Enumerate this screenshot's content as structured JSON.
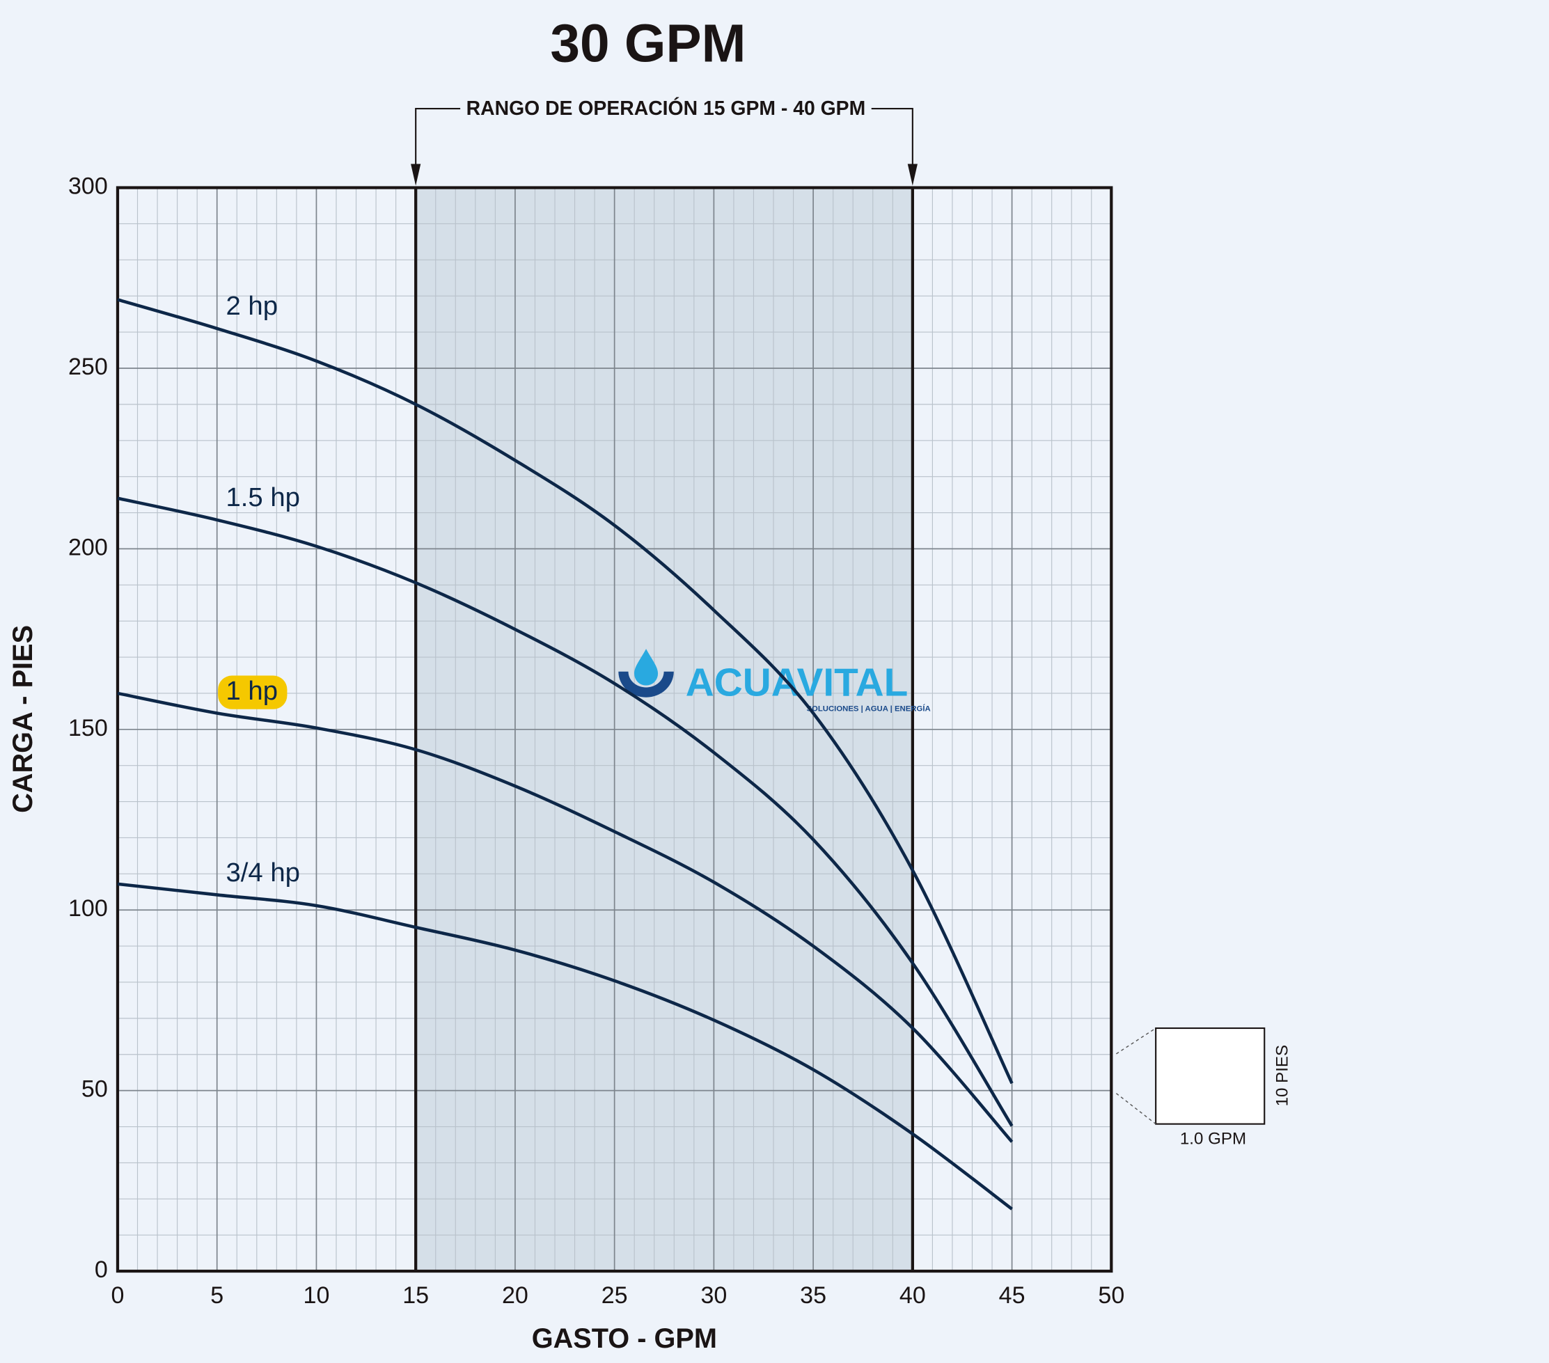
{
  "chart_data": {
    "type": "line",
    "title": "30 GPM",
    "range_annotation": "RANGO DE OPERACIÓN 15 GPM - 40 GPM",
    "operating_range": [
      15,
      40
    ],
    "xlabel": "GASTO - GPM",
    "ylabel": "CARGA - PIES",
    "x": [
      0,
      5,
      10,
      15,
      20,
      25,
      30,
      35,
      40,
      45
    ],
    "series": [
      {
        "name": "2 hp",
        "color": "#0d2748",
        "values": [
          269,
          261,
          252,
          240,
          224.5,
          206.5,
          183,
          154.5,
          111,
          52
        ]
      },
      {
        "name": "1.5 hp",
        "color": "#0d2748",
        "values": [
          214,
          208,
          200.7,
          190.6,
          177.7,
          162.7,
          143.6,
          119.5,
          85.3,
          40.2
        ]
      },
      {
        "name": "1 hp",
        "color": "#0d2748",
        "highlight_color": "#f5c800",
        "values": [
          160,
          154.5,
          150.4,
          144.4,
          134.3,
          121.7,
          107.7,
          90,
          67.3,
          35.8
        ]
      },
      {
        "name": "3/4 hp",
        "color": "#0d2748",
        "values": [
          107.2,
          104.2,
          101.2,
          95.2,
          88.9,
          80.4,
          69.5,
          55.8,
          38,
          17.2
        ]
      }
    ],
    "xlim": [
      0,
      50
    ],
    "ylim": [
      0,
      300
    ],
    "xticks": [
      0,
      5,
      10,
      15,
      20,
      25,
      30,
      35,
      40,
      45,
      50
    ],
    "yticks": [
      0,
      50,
      100,
      150,
      200,
      250,
      300
    ],
    "grid": true,
    "scale_box": {
      "x_label": "1.0 GPM",
      "y_label": "10 PIES"
    },
    "logo": {
      "name": "ACUAVITAL",
      "tagline": "SOLUCIONES | AGUA | ENERGÍA"
    }
  }
}
